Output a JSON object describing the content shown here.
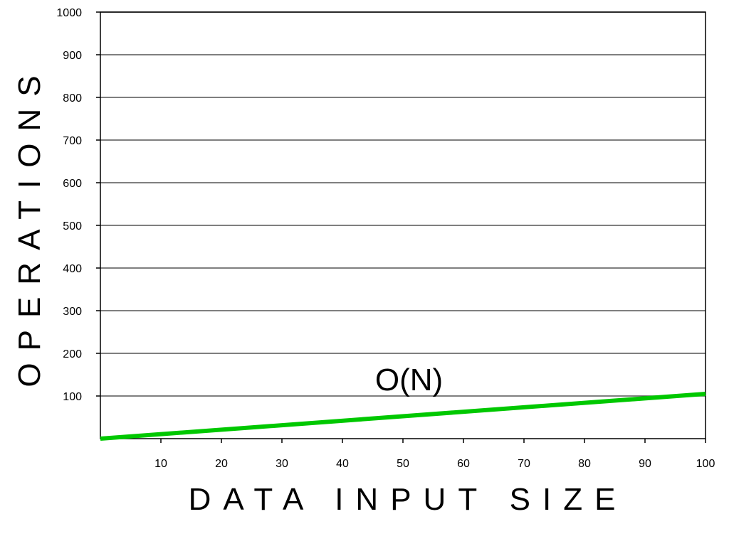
{
  "chart_data": {
    "type": "line",
    "title": "",
    "xlabel": "DATA INPUT SIZE",
    "ylabel": "OPERATIONS",
    "xlim": [
      0,
      100
    ],
    "ylim": [
      0,
      1000
    ],
    "xticks": [
      10,
      20,
      30,
      40,
      50,
      60,
      70,
      80,
      90,
      100
    ],
    "yticks": [
      100,
      200,
      300,
      400,
      500,
      600,
      700,
      800,
      900,
      1000
    ],
    "grid": "horizontal",
    "series": [
      {
        "name": "O(N)",
        "color": "#00c800",
        "x": [
          0,
          100
        ],
        "y": [
          0,
          105
        ]
      }
    ],
    "annotations": [
      {
        "text": "O(N)",
        "x": 51,
        "y": 140
      }
    ]
  }
}
